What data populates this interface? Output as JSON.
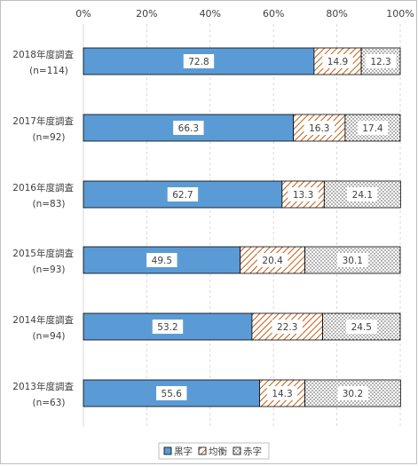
{
  "chart_data": {
    "type": "bar",
    "orientation": "horizontal",
    "stacked": "percent",
    "title": "",
    "xlabel": "",
    "ylabel": "",
    "xlim": [
      0,
      100
    ],
    "x_ticks": [
      "0%",
      "20%",
      "40%",
      "60%",
      "80%",
      "100%"
    ],
    "x_tick_values": [
      0,
      20,
      40,
      60,
      80,
      100
    ],
    "categories": [
      {
        "line1": "2018年度調査",
        "line2": "(n=114)"
      },
      {
        "line1": "2017年度調査",
        "line2": "(n=92)"
      },
      {
        "line1": "2016年度調査",
        "line2": "(n=83)"
      },
      {
        "line1": "2015年度調査",
        "line2": "(n=93)"
      },
      {
        "line1": "2014年度調査",
        "line2": "(n=94)"
      },
      {
        "line1": "2013年度調査",
        "line2": "(n=63)"
      }
    ],
    "series": [
      {
        "name": "黒字",
        "values": [
          72.8,
          66.3,
          62.7,
          49.5,
          53.2,
          55.6
        ],
        "color": "#5b9bd5",
        "pattern": "solid"
      },
      {
        "name": "均衡",
        "values": [
          14.9,
          16.3,
          13.3,
          20.4,
          22.3,
          14.3
        ],
        "color": "#c55a11",
        "pattern": "diagonal-stripes"
      },
      {
        "name": "赤字",
        "values": [
          12.3,
          17.4,
          24.1,
          30.1,
          24.5,
          30.2
        ],
        "color": "#7f7f7f",
        "pattern": "dots"
      }
    ],
    "grid": true,
    "legend_position": "bottom"
  }
}
